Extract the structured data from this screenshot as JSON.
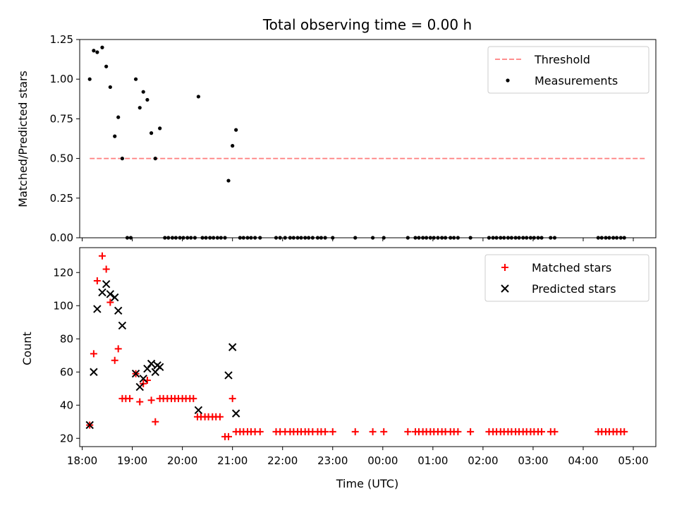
{
  "chart_data": [
    {
      "type": "scatter",
      "title": "Total observing time = 0.00 h",
      "xlabel": "",
      "ylabel": "Matched/Predicted stars",
      "x_unit": "hours since 18:00 UTC",
      "xlim": [
        17.95,
        29.45
      ],
      "ylim": [
        0,
        1.25
      ],
      "yticks": [
        0.0,
        0.25,
        0.5,
        0.75,
        1.0,
        1.25
      ],
      "ytick_labels": [
        "0.00",
        "0.25",
        "0.50",
        "0.75",
        "1.00",
        "1.25"
      ],
      "xticks": [
        18,
        19,
        20,
        21,
        22,
        23,
        24,
        25,
        26,
        27,
        28,
        29
      ],
      "xtick_labels": [
        "18:00",
        "19:00",
        "20:00",
        "21:00",
        "22:00",
        "23:00",
        "00:00",
        "01:00",
        "02:00",
        "03:00",
        "04:00",
        "05:00"
      ],
      "show_xtick_labels": false,
      "legend": {
        "position": "upper right",
        "entries": [
          "Threshold",
          "Measurements"
        ]
      },
      "series": [
        {
          "name": "Threshold",
          "kind": "line",
          "color": "#ff7f7f",
          "style": "dashed",
          "x": [
            18.15,
            29.25
          ],
          "y": [
            0.5,
            0.5
          ]
        },
        {
          "name": "Measurements",
          "kind": "scatter",
          "marker": "dot",
          "color": "#000000",
          "x": [
            18.15,
            18.23,
            18.3,
            18.4,
            18.48,
            18.56,
            18.65,
            18.72,
            18.8,
            18.9,
            18.97,
            19.07,
            19.15,
            19.22,
            19.3,
            19.38,
            19.46,
            19.55,
            19.65,
            19.72,
            19.8,
            19.87,
            19.95,
            20.02,
            20.1,
            20.17,
            20.25,
            20.32,
            20.4,
            20.47,
            20.55,
            20.62,
            20.7,
            20.77,
            20.85,
            20.92,
            21.0,
            21.07,
            21.15,
            21.22,
            21.3,
            21.37,
            21.45,
            21.55,
            21.87,
            21.95,
            22.05,
            22.15,
            22.22,
            22.3,
            22.37,
            22.45,
            22.52,
            22.6,
            22.7,
            22.77,
            22.85,
            23.0,
            23.45,
            23.8,
            24.02,
            24.5,
            24.65,
            24.72,
            24.8,
            24.87,
            24.95,
            25.02,
            25.1,
            25.18,
            25.25,
            25.35,
            25.42,
            25.5,
            25.75,
            26.12,
            26.2,
            26.27,
            26.35,
            26.42,
            26.5,
            26.57,
            26.65,
            26.72,
            26.8,
            26.87,
            26.95,
            27.02,
            27.1,
            27.17,
            27.35,
            27.43,
            28.3,
            28.37,
            28.45,
            28.52,
            28.6,
            28.67,
            28.75,
            28.82
          ],
          "y": [
            1.0,
            1.18,
            1.17,
            1.2,
            1.08,
            0.95,
            0.64,
            0.76,
            0.5,
            0.0,
            0.0,
            1.0,
            0.82,
            0.92,
            0.87,
            0.66,
            0.5,
            0.69,
            0.0,
            0.0,
            0.0,
            0.0,
            0.0,
            0.0,
            0.0,
            0.0,
            0.0,
            0.89,
            0.0,
            0.0,
            0.0,
            0.0,
            0.0,
            0.0,
            0.0,
            0.36,
            0.58,
            0.68,
            0.0,
            0.0,
            0.0,
            0.0,
            0.0,
            0.0,
            0.0,
            0.0,
            0.0,
            0.0,
            0.0,
            0.0,
            0.0,
            0.0,
            0.0,
            0.0,
            0.0,
            0.0,
            0.0,
            0.0,
            0.0,
            0.0,
            0.0,
            0.0,
            0.0,
            0.0,
            0.0,
            0.0,
            0.0,
            0.0,
            0.0,
            0.0,
            0.0,
            0.0,
            0.0,
            0.0,
            0.0,
            0.0,
            0.0,
            0.0,
            0.0,
            0.0,
            0.0,
            0.0,
            0.0,
            0.0,
            0.0,
            0.0,
            0.0,
            0.0,
            0.0,
            0.0,
            0.0,
            0.0,
            0.0,
            0.0,
            0.0,
            0.0,
            0.0,
            0.0,
            0.0,
            0.0
          ]
        }
      ]
    },
    {
      "type": "scatter",
      "title": "",
      "xlabel": "Time (UTC)",
      "ylabel": "Count",
      "x_unit": "hours since 18:00 UTC",
      "xlim": [
        17.95,
        29.45
      ],
      "ylim": [
        15,
        135
      ],
      "yticks": [
        20,
        40,
        60,
        80,
        100,
        120
      ],
      "ytick_labels": [
        "20",
        "40",
        "60",
        "80",
        "100",
        "120"
      ],
      "xticks": [
        18,
        19,
        20,
        21,
        22,
        23,
        24,
        25,
        26,
        27,
        28,
        29
      ],
      "xtick_labels": [
        "18:00",
        "19:00",
        "20:00",
        "21:00",
        "22:00",
        "23:00",
        "00:00",
        "01:00",
        "02:00",
        "03:00",
        "04:00",
        "05:00"
      ],
      "show_xtick_labels": true,
      "legend": {
        "position": "upper right",
        "entries": [
          "Matched stars",
          "Predicted stars"
        ]
      },
      "series": [
        {
          "name": "Matched stars",
          "kind": "scatter",
          "marker": "plus",
          "color": "#ff0000",
          "x": [
            18.15,
            18.23,
            18.3,
            18.4,
            18.48,
            18.56,
            18.65,
            18.72,
            18.8,
            18.87,
            18.95,
            19.07,
            19.15,
            19.22,
            19.3,
            19.38,
            19.46,
            19.55,
            19.62,
            19.7,
            19.78,
            19.85,
            19.92,
            20.0,
            20.07,
            20.15,
            20.22,
            20.3,
            20.37,
            20.45,
            20.52,
            20.6,
            20.67,
            20.75,
            20.85,
            20.92,
            21.0,
            21.07,
            21.15,
            21.22,
            21.3,
            21.37,
            21.45,
            21.55,
            21.87,
            21.95,
            22.05,
            22.15,
            22.22,
            22.3,
            22.37,
            22.45,
            22.52,
            22.6,
            22.7,
            22.77,
            22.85,
            23.0,
            23.45,
            23.8,
            24.02,
            24.5,
            24.65,
            24.72,
            24.8,
            24.87,
            24.95,
            25.02,
            25.1,
            25.18,
            25.25,
            25.35,
            25.42,
            25.5,
            25.75,
            26.12,
            26.2,
            26.27,
            26.35,
            26.42,
            26.5,
            26.57,
            26.65,
            26.72,
            26.8,
            26.87,
            26.95,
            27.02,
            27.1,
            27.17,
            27.35,
            27.43,
            28.3,
            28.37,
            28.45,
            28.52,
            28.6,
            28.67,
            28.75,
            28.82
          ],
          "y": [
            28,
            71,
            115,
            130,
            122,
            102,
            67,
            74,
            44,
            44,
            44,
            59,
            42,
            53,
            55,
            43,
            30,
            44,
            44,
            44,
            44,
            44,
            44,
            44,
            44,
            44,
            44,
            33,
            33,
            33,
            33,
            33,
            33,
            33,
            21,
            21,
            44,
            24,
            24,
            24,
            24,
            24,
            24,
            24,
            24,
            24,
            24,
            24,
            24,
            24,
            24,
            24,
            24,
            24,
            24,
            24,
            24,
            24,
            24,
            24,
            24,
            24,
            24,
            24,
            24,
            24,
            24,
            24,
            24,
            24,
            24,
            24,
            24,
            24,
            24,
            24,
            24,
            24,
            24,
            24,
            24,
            24,
            24,
            24,
            24,
            24,
            24,
            24,
            24,
            24,
            24,
            24,
            24,
            24,
            24,
            24,
            24,
            24,
            24,
            24
          ]
        },
        {
          "name": "Predicted stars",
          "kind": "scatter",
          "marker": "x",
          "color": "#000000",
          "x": [
            18.15,
            18.23,
            18.3,
            18.4,
            18.48,
            18.56,
            18.65,
            18.72,
            18.8,
            19.07,
            19.15,
            19.22,
            19.3,
            19.38,
            19.46,
            19.5,
            19.55,
            20.32,
            20.92,
            21.0,
            21.07
          ],
          "y": [
            28,
            60,
            98,
            108,
            113,
            107,
            105,
            97,
            88,
            59,
            51,
            56,
            62,
            65,
            60,
            64,
            63,
            37,
            58,
            75,
            35
          ]
        }
      ]
    }
  ]
}
